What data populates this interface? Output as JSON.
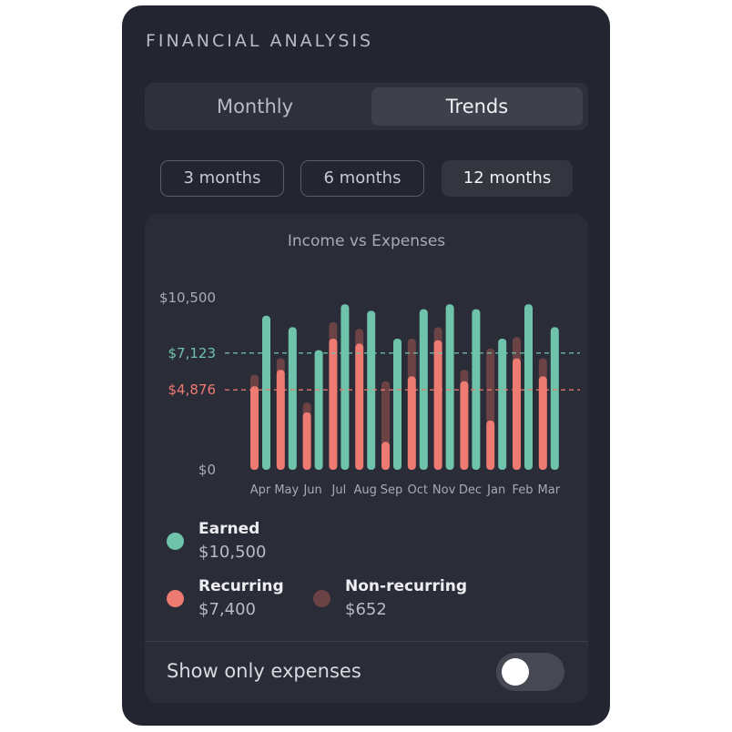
{
  "header": {
    "title": "FINANCIAL ANALYSIS"
  },
  "view_tabs": [
    {
      "label": "Monthly",
      "selected": false
    },
    {
      "label": "Trends",
      "selected": true
    }
  ],
  "range_buttons": [
    {
      "label": "3 months",
      "selected": false
    },
    {
      "label": "6 months",
      "selected": false
    },
    {
      "label": "12 months",
      "selected": true
    }
  ],
  "chart_data": {
    "type": "bar",
    "title": "Income vs Expenses",
    "categories": [
      "Apr",
      "May",
      "Jun",
      "Jul",
      "Aug",
      "Sep",
      "Oct",
      "Nov",
      "Dec",
      "Jan",
      "Feb",
      "Mar"
    ],
    "series": [
      {
        "name": "Earned",
        "color": "#6fc3aa",
        "values": [
          9400,
          8700,
          7300,
          10100,
          9700,
          8000,
          9800,
          10100,
          9800,
          8000,
          10100,
          8700
        ]
      },
      {
        "name": "Recurring",
        "color": "#ee7b72",
        "values": [
          5100,
          6100,
          3500,
          8000,
          7700,
          1700,
          5700,
          7900,
          5400,
          3000,
          6800,
          5700
        ]
      },
      {
        "name": "Non-recurring",
        "color": "#6b4345",
        "values": [
          700,
          700,
          600,
          1000,
          900,
          3700,
          2300,
          800,
          700,
          4400,
          1300,
          1100
        ]
      }
    ],
    "reference_lines": [
      {
        "label": "$7,123",
        "value": 7123,
        "color": "#6fc3aa"
      },
      {
        "label": "$4,876",
        "value": 4876,
        "color": "#ee7b72"
      }
    ],
    "yticks": [
      {
        "label": "$10,500",
        "value": 10500
      },
      {
        "label": "$0",
        "value": 0
      }
    ],
    "ylim": [
      0,
      10500
    ],
    "legend_position": "bottom"
  },
  "legend": [
    {
      "label": "Earned",
      "value": "$10,500",
      "color": "#6fc3aa"
    },
    {
      "label": "Recurring",
      "value": "$7,400",
      "color": "#ee7b72"
    },
    {
      "label": "Non-recurring",
      "value": "$652",
      "color": "#6b4345"
    }
  ],
  "toggle": {
    "label": "Show only expenses",
    "on": false
  }
}
